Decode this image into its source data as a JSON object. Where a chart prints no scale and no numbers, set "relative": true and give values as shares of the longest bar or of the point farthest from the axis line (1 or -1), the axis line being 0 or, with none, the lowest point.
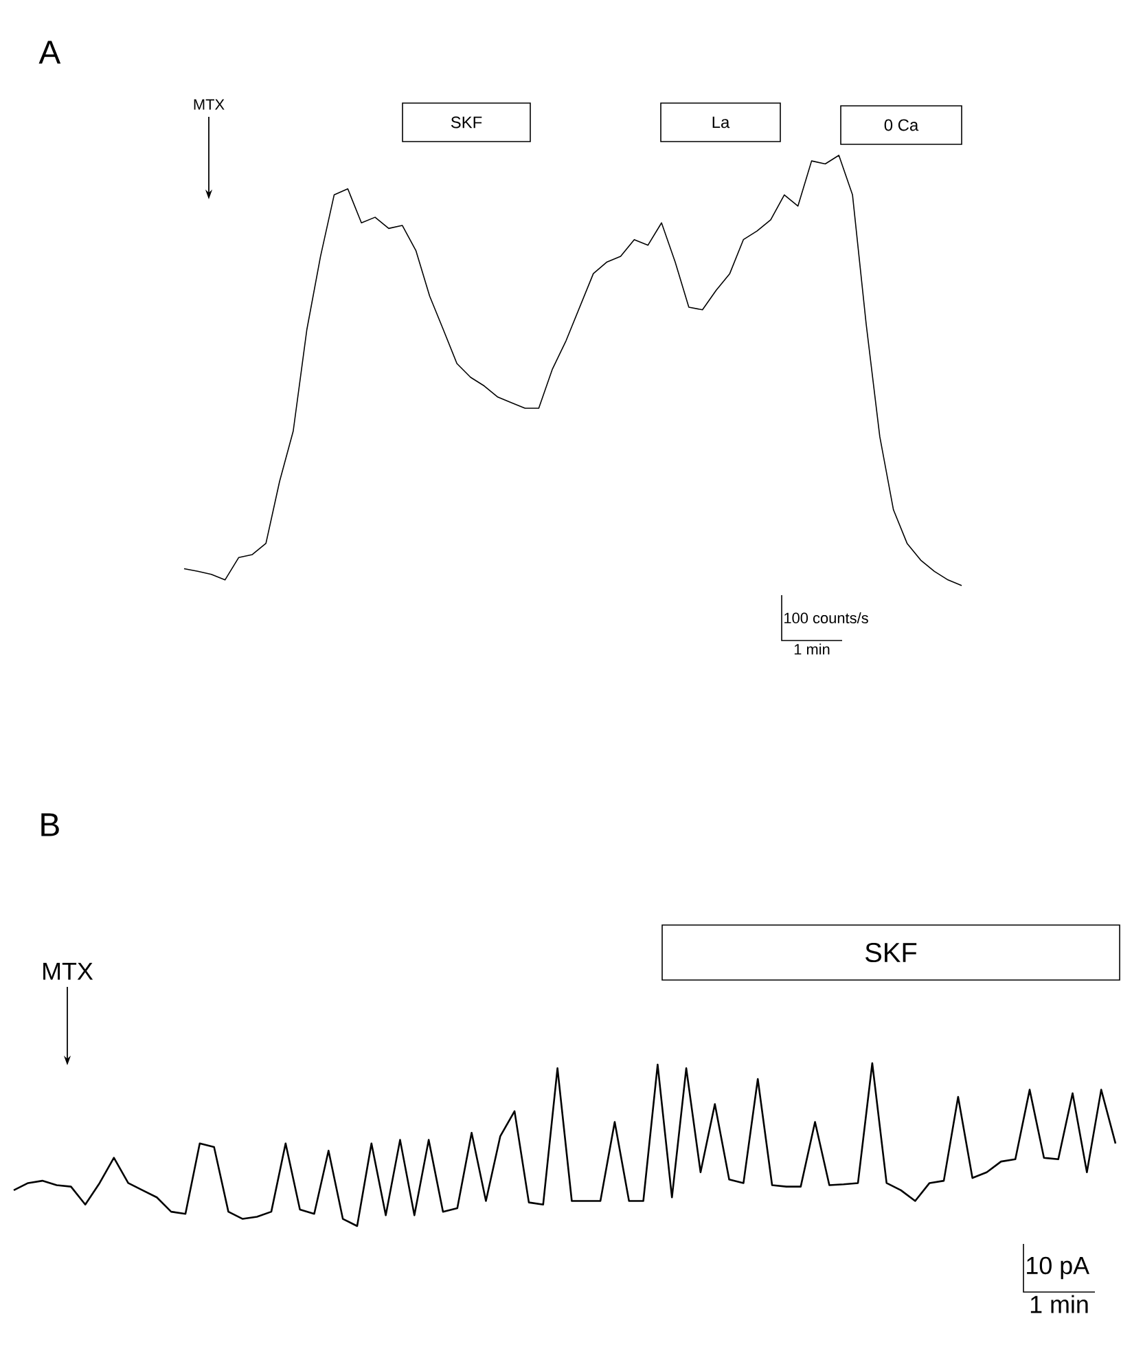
{
  "chart_data": [
    {
      "type": "line",
      "title": "A",
      "relative": true,
      "color": "#000000",
      "categories": [
        null,
        null,
        null,
        null,
        null,
        null,
        null,
        null,
        null,
        null,
        null,
        null,
        null,
        null,
        null,
        null,
        null,
        null,
        null,
        null,
        null,
        null,
        null,
        null,
        null,
        null,
        null,
        null,
        null,
        null,
        null,
        null,
        null,
        null,
        null,
        null,
        null,
        null,
        null,
        null,
        null,
        null,
        null,
        null,
        null,
        null,
        null,
        null,
        null,
        null,
        null,
        null,
        null,
        null,
        null,
        null,
        null,
        null
      ],
      "values": [
        0.039,
        0.033,
        0.026,
        0.013,
        0.065,
        0.072,
        0.098,
        0.242,
        0.359,
        0.595,
        0.765,
        0.908,
        0.922,
        0.843,
        0.856,
        0.83,
        0.837,
        0.778,
        0.673,
        0.595,
        0.516,
        0.484,
        0.464,
        0.438,
        0.425,
        0.412,
        0.412,
        0.503,
        0.569,
        0.647,
        0.725,
        0.752,
        0.765,
        0.804,
        0.791,
        0.843,
        0.752,
        0.647,
        0.641,
        0.686,
        0.725,
        0.804,
        0.824,
        0.85,
        0.908,
        0.882,
        0.987,
        0.98,
        1.0,
        0.908,
        0.608,
        0.346,
        0.176,
        0.098,
        0.059,
        0.033,
        0.013,
        0
      ],
      "annotations": [
        "MTX",
        "SKF",
        "La",
        "0 Ca",
        "100 counts/s",
        "1 min"
      ]
    },
    {
      "type": "line",
      "title": "B",
      "relative": true,
      "color": "#000000",
      "categories": [
        null,
        null,
        null,
        null,
        null,
        null,
        null,
        null,
        null,
        null,
        null,
        null,
        null,
        null,
        null,
        null,
        null,
        null,
        null,
        null,
        null,
        null,
        null,
        null,
        null,
        null,
        null,
        null,
        null,
        null,
        null,
        null,
        null,
        null,
        null,
        null,
        null,
        null,
        null,
        null,
        null,
        null,
        null,
        null,
        null,
        null,
        null,
        null,
        null,
        null,
        null,
        null,
        null,
        null,
        null,
        null,
        null,
        null,
        null,
        null,
        null,
        null,
        null,
        null,
        null,
        null,
        null,
        null,
        null,
        null,
        null,
        null,
        null,
        null,
        null,
        null,
        null,
        null
      ],
      "values": [
        0.22,
        0.264,
        0.278,
        0.251,
        0.242,
        0.132,
        0.264,
        0.419,
        0.264,
        0.22,
        0.176,
        0.088,
        0.075,
        0.507,
        0.485,
        0.088,
        0.044,
        0.057,
        0.088,
        0.507,
        0.101,
        0.075,
        0.463,
        0.044,
        0,
        0.507,
        0.066,
        0.529,
        0.066,
        0.529,
        0.088,
        0.11,
        0.573,
        0.154,
        0.551,
        0.705,
        0.145,
        0.132,
        0.969,
        0.154,
        0.154,
        0.154,
        0.639,
        0.154,
        0.154,
        0.991,
        0.176,
        0.969,
        0.33,
        0.749,
        0.286,
        0.264,
        0.903,
        0.251,
        0.242,
        0.242,
        0.639,
        0.251,
        0.256,
        0.264,
        1.0,
        0.264,
        0.22,
        0.154,
        0.264,
        0.278,
        0.793,
        0.295,
        0.33,
        0.396,
        0.41,
        0.837,
        0.419,
        0.41,
        0.815,
        0.33,
        0.837,
        0.507
      ],
      "annotations": [
        "MTX",
        "SKF",
        "10 pA",
        "1 min"
      ]
    }
  ]
}
